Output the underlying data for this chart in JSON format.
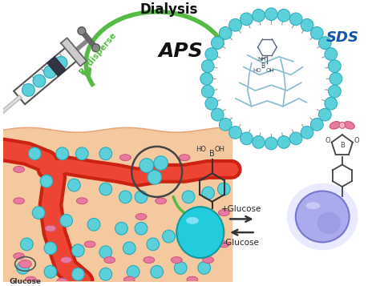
{
  "bg_color": "#ffffff",
  "teal_color": "#5BCFDA",
  "teal_dark": "#2AABB8",
  "green_color": "#55BB44",
  "skin_color": "#F5C9A0",
  "skin_dark": "#E8A87C",
  "blood_red": "#CC2211",
  "blood_light": "#EE4433",
  "pink_color": "#E87AA0",
  "pink_dark": "#CC5577",
  "purple_color": "#7777CC",
  "purple_light": "#AAAAEE",
  "purple_glow": "#CCCCFF",
  "text_dialysis": "Dialysis",
  "text_redisperse": "Redisperse",
  "text_aps": "APS",
  "text_sds": "SDS",
  "text_glucose_label": "Glucose",
  "text_plus_glucose": "+Glucose",
  "text_minus_glucose": "-Glucose",
  "syringe_body": "#F0F0F0",
  "syringe_edge": "#888888",
  "syringe_dark": "#333333",
  "needle_color": "#AAAAAA"
}
